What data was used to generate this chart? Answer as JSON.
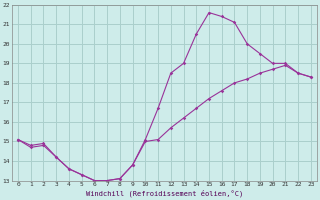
{
  "xlabel": "Windchill (Refroidissement éolien,°C)",
  "bg_color": "#ceecea",
  "grid_color": "#aacfcc",
  "line_color": "#993399",
  "xlim": [
    -0.5,
    23.5
  ],
  "ylim": [
    13,
    22
  ],
  "xticks": [
    0,
    1,
    2,
    3,
    4,
    5,
    6,
    7,
    8,
    9,
    10,
    11,
    12,
    13,
    14,
    15,
    16,
    17,
    18,
    19,
    20,
    21,
    22,
    23
  ],
  "yticks": [
    13,
    14,
    15,
    16,
    17,
    18,
    19,
    20,
    21,
    22
  ],
  "line1_x": [
    0,
    1,
    2,
    3,
    4,
    5,
    6,
    7,
    8,
    9,
    10,
    11,
    12,
    13,
    14,
    15,
    16,
    17,
    18,
    19,
    20,
    21,
    22,
    23
  ],
  "line1_y": [
    15.1,
    14.8,
    14.9,
    14.2,
    13.6,
    13.3,
    13.0,
    13.0,
    13.1,
    13.8,
    15.1,
    16.7,
    18.5,
    19.0,
    20.5,
    21.6,
    21.4,
    21.1,
    20.0,
    19.5,
    19.0,
    19.0,
    18.5,
    18.3
  ],
  "line2_x": [
    0,
    1,
    2,
    3,
    4,
    5,
    6,
    7,
    8,
    9,
    10,
    11,
    12,
    13,
    14,
    15,
    16,
    17,
    18,
    19,
    20,
    21,
    22,
    23
  ],
  "line2_y": [
    15.1,
    14.7,
    14.8,
    14.2,
    13.6,
    13.3,
    13.0,
    13.0,
    13.1,
    13.8,
    15.0,
    15.1,
    15.7,
    16.2,
    16.7,
    17.2,
    17.6,
    18.0,
    18.2,
    18.5,
    18.7,
    18.9,
    18.5,
    18.3
  ]
}
